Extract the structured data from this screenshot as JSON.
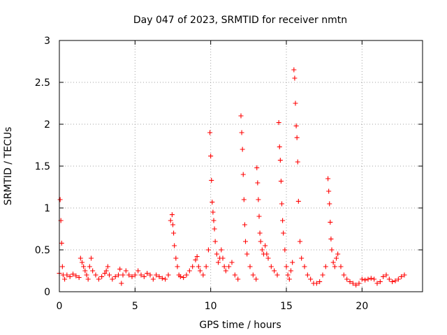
{
  "chart_data": {
    "type": "scatter",
    "title": "Day 047 of 2023, SRMTID for receiver nmtn",
    "xlabel": "GPS time / hours",
    "ylabel": "SRMTID / TECUs",
    "xlim": [
      0,
      24
    ],
    "ylim": [
      0,
      3
    ],
    "x_ticks": [
      0,
      5,
      10,
      15,
      20
    ],
    "y_ticks": [
      0,
      0.5,
      1,
      1.5,
      2,
      2.5,
      3
    ],
    "x_tick_labels": [
      "0",
      "5",
      "10",
      "15",
      "20"
    ],
    "y_tick_labels": [
      "0",
      "0.5",
      "1",
      "1.5",
      "2",
      "2.5",
      "3"
    ],
    "grid": true,
    "marker": "+",
    "series": [
      {
        "name": "SRMTID",
        "color": "#ff0000",
        "x": [
          0.0,
          0.05,
          0.1,
          0.15,
          0.2,
          0.25,
          0.35,
          0.5,
          0.7,
          0.9,
          1.1,
          1.3,
          1.4,
          1.5,
          1.6,
          1.7,
          1.8,
          1.9,
          2.0,
          2.1,
          2.2,
          2.4,
          2.6,
          2.8,
          3.0,
          3.1,
          3.2,
          3.3,
          3.5,
          3.7,
          3.9,
          4.0,
          4.1,
          4.2,
          4.4,
          4.6,
          4.8,
          5.0,
          5.2,
          5.4,
          5.6,
          5.8,
          6.0,
          6.2,
          6.4,
          6.6,
          6.8,
          7.0,
          7.2,
          7.35,
          7.45,
          7.5,
          7.55,
          7.6,
          7.7,
          7.8,
          7.9,
          8.0,
          8.2,
          8.4,
          8.6,
          8.8,
          9.0,
          9.1,
          9.2,
          9.3,
          9.5,
          9.7,
          9.85,
          9.95,
          10.0,
          10.05,
          10.1,
          10.15,
          10.2,
          10.25,
          10.3,
          10.4,
          10.5,
          10.6,
          10.7,
          10.8,
          10.9,
          11.0,
          11.2,
          11.4,
          11.6,
          11.8,
          12.0,
          12.05,
          12.1,
          12.15,
          12.2,
          12.25,
          12.3,
          12.4,
          12.6,
          12.8,
          13.0,
          13.05,
          13.1,
          13.15,
          13.2,
          13.25,
          13.3,
          13.4,
          13.5,
          13.6,
          13.7,
          13.8,
          14.0,
          14.2,
          14.4,
          14.5,
          14.55,
          14.6,
          14.65,
          14.7,
          14.75,
          14.8,
          14.9,
          15.0,
          15.1,
          15.2,
          15.3,
          15.4,
          15.5,
          15.55,
          15.6,
          15.65,
          15.7,
          15.75,
          15.8,
          15.9,
          16.0,
          16.2,
          16.4,
          16.6,
          16.8,
          17.0,
          17.2,
          17.4,
          17.6,
          17.75,
          17.8,
          17.85,
          17.9,
          17.95,
          18.0,
          18.1,
          18.2,
          18.3,
          18.4,
          18.6,
          18.8,
          19.0,
          19.2,
          19.4,
          19.6,
          19.8,
          20.0,
          20.2,
          20.4,
          20.6,
          20.8,
          21.0,
          21.2,
          21.4,
          21.6,
          21.8,
          22.0,
          22.2,
          22.4,
          22.6,
          22.8
        ],
        "y": [
          0.22,
          1.1,
          0.85,
          0.58,
          0.3,
          0.2,
          0.15,
          0.2,
          0.18,
          0.21,
          0.19,
          0.17,
          0.4,
          0.35,
          0.3,
          0.25,
          0.2,
          0.15,
          0.3,
          0.4,
          0.25,
          0.2,
          0.15,
          0.18,
          0.22,
          0.25,
          0.3,
          0.2,
          0.15,
          0.18,
          0.2,
          0.27,
          0.1,
          0.2,
          0.25,
          0.2,
          0.18,
          0.2,
          0.25,
          0.2,
          0.18,
          0.22,
          0.2,
          0.15,
          0.2,
          0.18,
          0.16,
          0.15,
          0.2,
          0.85,
          0.92,
          0.8,
          0.7,
          0.55,
          0.4,
          0.3,
          0.2,
          0.18,
          0.17,
          0.2,
          0.25,
          0.3,
          0.38,
          0.42,
          0.3,
          0.25,
          0.2,
          0.3,
          0.5,
          1.9,
          1.62,
          1.33,
          1.07,
          0.95,
          0.85,
          0.75,
          0.6,
          0.45,
          0.35,
          0.4,
          0.5,
          0.4,
          0.3,
          0.25,
          0.3,
          0.35,
          0.2,
          0.15,
          2.1,
          1.9,
          1.7,
          1.4,
          1.1,
          0.8,
          0.6,
          0.45,
          0.3,
          0.2,
          0.15,
          1.48,
          1.3,
          1.1,
          0.9,
          0.7,
          0.6,
          0.5,
          0.45,
          0.55,
          0.45,
          0.4,
          0.3,
          0.25,
          0.2,
          2.02,
          1.73,
          1.57,
          1.32,
          1.05,
          0.85,
          0.7,
          0.5,
          0.3,
          0.2,
          0.15,
          0.25,
          0.35,
          2.65,
          2.55,
          2.25,
          1.98,
          1.84,
          1.55,
          1.08,
          0.6,
          0.4,
          0.3,
          0.2,
          0.15,
          0.1,
          0.1,
          0.12,
          0.2,
          0.3,
          1.35,
          1.2,
          1.05,
          0.83,
          0.63,
          0.5,
          0.35,
          0.3,
          0.4,
          0.45,
          0.3,
          0.2,
          0.15,
          0.12,
          0.1,
          0.08,
          0.1,
          0.15,
          0.14,
          0.15,
          0.16,
          0.15,
          0.1,
          0.12,
          0.18,
          0.2,
          0.15,
          0.12,
          0.13,
          0.15,
          0.18,
          0.2
        ]
      }
    ]
  }
}
